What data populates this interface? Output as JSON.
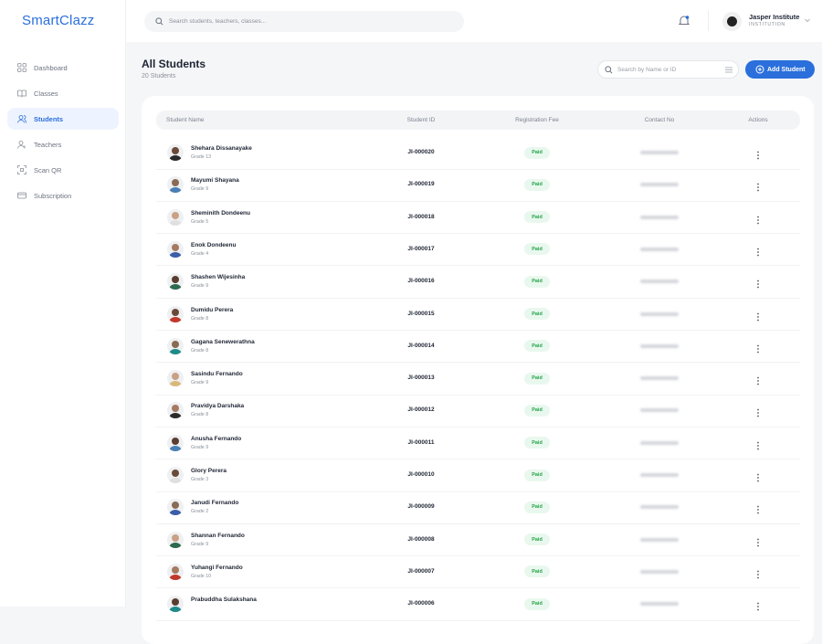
{
  "sidebar": {
    "logo": "SmartClazz",
    "items": [
      "Dashboard",
      "Classes",
      "Students",
      "Teachers",
      "Scan QR",
      "Subscription"
    ],
    "active": 2
  },
  "header": {
    "search_placeholder": "Search students, teachers, classes...",
    "user_name": "Jasper Institute",
    "user_role": "INSTITUTION"
  },
  "page": {
    "title": "All Students",
    "subtitle": "20 Students",
    "search_placeholder": "Search by Name or ID",
    "add_button": "Add Student"
  },
  "table": {
    "columns": [
      "Student Name",
      "Student ID",
      "Registration Fee",
      "Contact No",
      "Actions"
    ],
    "rows": [
      {
        "name": "Shehara Dissanayake",
        "grade": "Grade 13",
        "id": "JI-000020",
        "fee": "Paid"
      },
      {
        "name": "Mayumi Shayana",
        "grade": "Grade 9",
        "id": "JI-000019",
        "fee": "Paid"
      },
      {
        "name": "Sheminith Dondeenu",
        "grade": "Grade 5",
        "id": "JI-000018",
        "fee": "Paid"
      },
      {
        "name": "Enok Dondeenu",
        "grade": "Grade 4",
        "id": "JI-000017",
        "fee": "Paid"
      },
      {
        "name": "Shashen Wijesinha",
        "grade": "Grade 9",
        "id": "JI-000016",
        "fee": "Paid"
      },
      {
        "name": "Dumidu Perera",
        "grade": "Grade 8",
        "id": "JI-000015",
        "fee": "Paid"
      },
      {
        "name": "Gagana Senewerathna",
        "grade": "Grade 8",
        "id": "JI-000014",
        "fee": "Paid"
      },
      {
        "name": "Sasindu Fernando",
        "grade": "Grade 9",
        "id": "JI-000013",
        "fee": "Paid"
      },
      {
        "name": "Pravidya Darshaka",
        "grade": "Grade 8",
        "id": "JI-000012",
        "fee": "Paid"
      },
      {
        "name": "Anusha Fernando",
        "grade": "Grade 9",
        "id": "JI-000011",
        "fee": "Paid"
      },
      {
        "name": "Glory Perera",
        "grade": "Grade 3",
        "id": "JI-000010",
        "fee": "Paid"
      },
      {
        "name": "Janudi Fernando",
        "grade": "Grade 2",
        "id": "JI-000009",
        "fee": "Paid"
      },
      {
        "name": "Shannan Fernando",
        "grade": "Grade 9",
        "id": "JI-000008",
        "fee": "Paid"
      },
      {
        "name": "Yuhangi Fernando",
        "grade": "Grade 10",
        "id": "JI-000007",
        "fee": "Paid"
      },
      {
        "name": "Prabuddha Sulakshana",
        "id": "JI-000006",
        "fee": "Paid"
      }
    ]
  }
}
